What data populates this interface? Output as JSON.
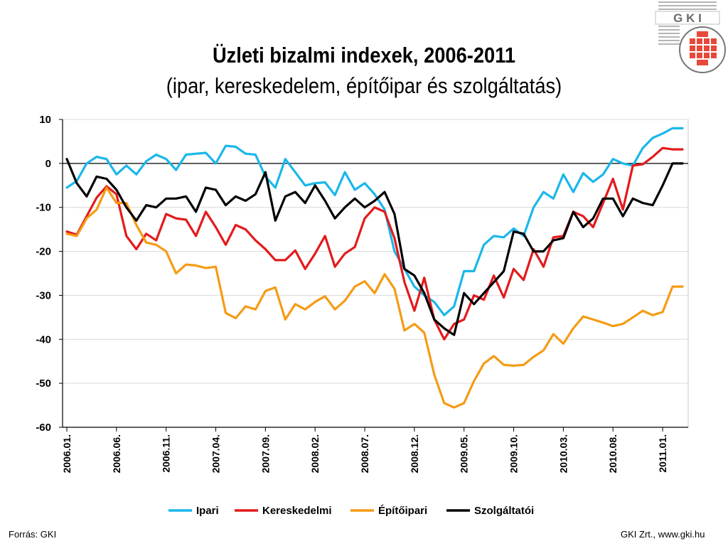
{
  "header": {
    "title": "Üzleti bizalmi indexek, 2006-2011",
    "subtitle": "(ipar, kereskedelem, építőipar és szolgáltatás)"
  },
  "logo": {
    "text": "G K I",
    "icon": "gki-logo-icon",
    "accent": "#e8483a"
  },
  "footer": {
    "source": "Forrás: GKI",
    "credit": "GKI Zrt., www.gki.hu"
  },
  "chart_data": {
    "type": "line",
    "title": "Üzleti bizalmi indexek, 2006-2011",
    "ylim": [
      -60,
      10
    ],
    "yticks": [
      10,
      0,
      -10,
      -20,
      -30,
      -40,
      -50,
      -60
    ],
    "x_tick_labels": [
      "2006.01.",
      "2006.06.",
      "2006.11.",
      "2007.04.",
      "2007.09.",
      "2008.02.",
      "2008.07.",
      "2008.12.",
      "2009.05.",
      "2009.10.",
      "2010.03.",
      "2010.08.",
      "2011.01."
    ],
    "x_tick_step": 5,
    "x_start": "2006.01.",
    "n_points": 63,
    "zero_line": true,
    "grid": "horizontal",
    "legend_position": "bottom",
    "series": [
      {
        "name": "Ipari",
        "color": "#1ab7ea",
        "values": [
          -5.5,
          -4,
          0,
          1.5,
          1,
          -2.5,
          -0.5,
          -2.5,
          0.5,
          2,
          1,
          -1.5,
          2,
          2.2,
          2.4,
          0,
          4,
          3.8,
          2.2,
          2,
          -3,
          -5.5,
          1,
          -2,
          -5,
          -4.5,
          -4.3,
          -7.2,
          -2,
          -6,
          -4.5,
          -7,
          -10.5,
          -20,
          -24,
          -28,
          -30,
          -31.5,
          -34.5,
          -32.5,
          -24.5,
          -24.5,
          -18.5,
          -16.5,
          -16.8,
          -14.8,
          -16.5,
          -10,
          -6.5,
          -8,
          -2.5,
          -6.5,
          -2.2,
          -4.2,
          -2.5,
          1,
          0,
          -0.5,
          3.5,
          5.8,
          6.8,
          8,
          8
        ]
      },
      {
        "name": "Kereskedelmi",
        "color": "#e31a1c",
        "values": [
          -15.5,
          -16.2,
          -12,
          -7.8,
          -5.2,
          -7,
          -16.5,
          -19.5,
          -16,
          -17.5,
          -11.5,
          -12.5,
          -12.8,
          -16.5,
          -11,
          -14.5,
          -18.5,
          -14,
          -15,
          -17.5,
          -19.5,
          -22,
          -22,
          -19.8,
          -24,
          -20.5,
          -16.5,
          -23.5,
          -20.5,
          -19,
          -12.5,
          -10,
          -11,
          -17,
          -27,
          -33.5,
          -26,
          -35.5,
          -40,
          -36.5,
          -35.5,
          -30,
          -31,
          -25.5,
          -30.5,
          -24,
          -26.5,
          -19.5,
          -23.5,
          -16.8,
          -16.5,
          -11,
          -12,
          -14.5,
          -9,
          -3.5,
          -10.5,
          -0.5,
          -0.2,
          1.5,
          3.5,
          3.2,
          3.2
        ]
      },
      {
        "name": "Építőipari",
        "color": "#f59b15",
        "values": [
          -16,
          -16.5,
          -12.5,
          -10.5,
          -5.5,
          -9,
          -9,
          -14,
          -18,
          -18.5,
          -20,
          -25,
          -23,
          -23.2,
          -23.8,
          -23.5,
          -34,
          -35.2,
          -32.5,
          -33.2,
          -29,
          -28.2,
          -35.5,
          -32,
          -33.2,
          -31.5,
          -30.2,
          -33.2,
          -31.2,
          -28,
          -26.8,
          -29.5,
          -25.2,
          -28.5,
          -38,
          -36.5,
          -38.5,
          -48,
          -54.5,
          -55.5,
          -54.5,
          -49.5,
          -45.5,
          -43.8,
          -45.8,
          -46,
          -45.8,
          -44,
          -42.5,
          -38.8,
          -41,
          -37.5,
          -34.8,
          -35.5,
          -36.2,
          -37,
          -36.5,
          -35,
          -33.5,
          -34.5,
          -33.8,
          -28,
          -28
        ]
      },
      {
        "name": "Szolgáltatói",
        "color": "#000000",
        "values": [
          1,
          -4.5,
          -7.5,
          -3,
          -3.5,
          -6,
          -10,
          -13,
          -9.5,
          -10,
          -8,
          -8,
          -7.5,
          -11,
          -5.5,
          -6,
          -9.5,
          -7.5,
          -8.5,
          -7,
          -2,
          -13,
          -7.5,
          -6.5,
          -9,
          -5,
          -8.5,
          -12.5,
          -10,
          -8,
          -10,
          -8.5,
          -6.5,
          -11.5,
          -24,
          -25.5,
          -29.5,
          -35.5,
          -37.5,
          -39,
          -29.5,
          -32,
          -29.5,
          -27,
          -24.5,
          -15.5,
          -16,
          -20,
          -20,
          -17.5,
          -17,
          -11,
          -14.5,
          -12.5,
          -8,
          -8,
          -12,
          -8,
          -9,
          -9.5,
          -5,
          0,
          0
        ]
      }
    ]
  }
}
